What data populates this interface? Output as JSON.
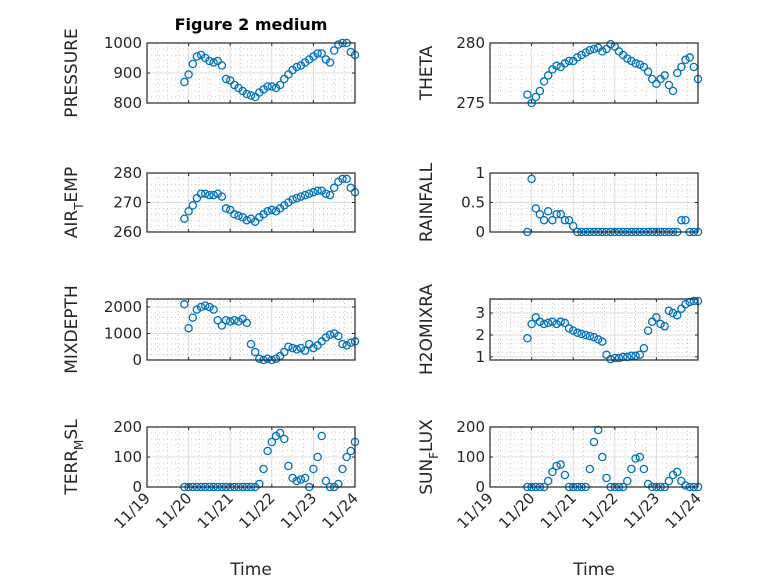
{
  "figure_title": "Figure 2 medium",
  "chart_data": {
    "type": "scatter",
    "title": "Figure 2 medium",
    "xlabel": "Time",
    "xticklabels": [
      "11/19",
      "11/20",
      "11/21",
      "11/22",
      "11/23",
      "11/24"
    ],
    "x_unit": "days since 11/19 00:00",
    "xlim": [
      0,
      5
    ],
    "x": [
      0.9,
      1.0,
      1.1,
      1.2,
      1.3,
      1.4,
      1.5,
      1.6,
      1.7,
      1.8,
      1.9,
      2.0,
      2.1,
      2.2,
      2.3,
      2.4,
      2.5,
      2.6,
      2.7,
      2.8,
      2.9,
      3.0,
      3.1,
      3.2,
      3.3,
      3.4,
      3.5,
      3.6,
      3.7,
      3.8,
      3.9,
      4.0,
      4.1,
      4.2,
      4.3,
      4.4,
      4.5,
      4.6,
      4.7,
      4.8,
      4.9,
      5.0
    ],
    "marker_color": "#0072BD",
    "grid": true,
    "subplots": [
      {
        "ylabel": "PRESSURE",
        "ylim": [
          800,
          1000
        ],
        "yticks": [
          800,
          900,
          1000
        ],
        "yticklabels": [
          "800",
          "900",
          "1000"
        ],
        "values": [
          870,
          895,
          930,
          955,
          960,
          950,
          940,
          935,
          940,
          925,
          880,
          875,
          860,
          850,
          840,
          830,
          825,
          820,
          835,
          845,
          855,
          855,
          850,
          860,
          880,
          895,
          910,
          920,
          925,
          935,
          945,
          955,
          965,
          965,
          945,
          935,
          975,
          995,
          1000,
          1000,
          970,
          960
        ]
      },
      {
        "ylabel": "THETA",
        "ylim": [
          275,
          280
        ],
        "yticks": [
          275,
          280
        ],
        "yticklabels": [
          "275",
          "280"
        ],
        "values": [
          275.7,
          275.0,
          275.5,
          276.0,
          276.8,
          277.3,
          277.8,
          278.1,
          278.0,
          278.3,
          278.5,
          278.5,
          278.8,
          279.0,
          279.2,
          279.4,
          279.5,
          279.6,
          279.3,
          279.5,
          279.9,
          279.7,
          279.3,
          279.0,
          278.7,
          278.5,
          278.3,
          278.2,
          278.0,
          277.6,
          277.0,
          276.6,
          277.0,
          277.3,
          276.5,
          276.0,
          277.5,
          278.0,
          278.6,
          278.8,
          278.0,
          277.0
        ]
      },
      {
        "ylabel": "AIR_TEMP",
        "ylim": [
          260,
          280
        ],
        "yticks": [
          260,
          270,
          280
        ],
        "yticklabels": [
          "260",
          "270",
          "280"
        ],
        "values": [
          264.5,
          267,
          269,
          271.5,
          273,
          273,
          272.5,
          272.5,
          273,
          272,
          268,
          267.5,
          266,
          265.5,
          265,
          264,
          264.5,
          263.5,
          265,
          266,
          267,
          267.5,
          267,
          268,
          269,
          270,
          271,
          271.5,
          272,
          272.5,
          273,
          273.5,
          274,
          274,
          273,
          272.5,
          275,
          277,
          278,
          278,
          275,
          273.5
        ]
      },
      {
        "ylabel": "RAINFALL",
        "ylim": [
          0,
          1
        ],
        "yticks": [
          0,
          0.5,
          1
        ],
        "yticklabels": [
          "0",
          "0.5",
          "1"
        ],
        "values": [
          0,
          0.9,
          0.4,
          0.3,
          0.2,
          0.35,
          0.2,
          0.3,
          0.3,
          0.2,
          0.2,
          0.1,
          0,
          0,
          0,
          0,
          0,
          0,
          0,
          0,
          0,
          0,
          0,
          0,
          0,
          0,
          0,
          0,
          0,
          0,
          0,
          0,
          0,
          0,
          0,
          0,
          0,
          0.2,
          0.2,
          0,
          0,
          0
        ]
      },
      {
        "ylabel": "MIXDEPTH",
        "ylim": [
          0,
          2300
        ],
        "yticks": [
          0,
          1000,
          2000
        ],
        "yticklabels": [
          "0",
          "1000",
          "2000"
        ],
        "values": [
          2100,
          1200,
          1600,
          1900,
          2000,
          2050,
          2000,
          1900,
          1500,
          1300,
          1500,
          1450,
          1500,
          1450,
          1550,
          1400,
          600,
          300,
          50,
          0,
          50,
          0,
          50,
          150,
          300,
          500,
          450,
          400,
          450,
          350,
          600,
          450,
          550,
          700,
          850,
          950,
          1000,
          900,
          600,
          550,
          650,
          700
        ]
      },
      {
        "ylabel": "H2OMIXRA",
        "ylim": [
          0.86,
          3.64
        ],
        "yticks": [
          1,
          2,
          3
        ],
        "yticklabels": [
          "1",
          "2",
          "3"
        ],
        "values": [
          1.85,
          2.5,
          2.8,
          2.6,
          2.5,
          2.55,
          2.6,
          2.5,
          2.6,
          2.55,
          2.3,
          2.2,
          2.1,
          2.05,
          2.0,
          1.95,
          1.9,
          1.8,
          1.7,
          1.1,
          0.9,
          0.95,
          0.95,
          1.0,
          1.0,
          1.05,
          1.05,
          1.1,
          1.4,
          2.2,
          2.6,
          2.8,
          2.5,
          2.4,
          3.1,
          3.0,
          2.9,
          3.2,
          3.4,
          3.5,
          3.55,
          3.55
        ]
      },
      {
        "ylabel": "TERR_MSL",
        "ylim": [
          0,
          200
        ],
        "yticks": [
          0,
          100,
          200
        ],
        "yticklabels": [
          "0",
          "100",
          "200"
        ],
        "values": [
          0,
          0,
          0,
          0,
          0,
          0,
          0,
          0,
          0,
          0,
          0,
          0,
          0,
          0,
          0,
          0,
          0,
          0,
          10,
          60,
          120,
          150,
          170,
          180,
          160,
          70,
          30,
          20,
          25,
          30,
          0,
          60,
          100,
          170,
          20,
          0,
          0,
          10,
          60,
          100,
          120,
          150
        ]
      },
      {
        "ylabel": "SUN_FLUX",
        "ylim": [
          0,
          200
        ],
        "yticks": [
          0,
          100,
          200
        ],
        "yticklabels": [
          "0",
          "100",
          "200"
        ],
        "values": [
          0,
          0,
          0,
          0,
          0,
          20,
          50,
          70,
          75,
          40,
          0,
          0,
          0,
          0,
          0,
          60,
          150,
          190,
          100,
          30,
          0,
          0,
          0,
          0,
          20,
          60,
          95,
          100,
          60,
          10,
          0,
          0,
          0,
          0,
          20,
          40,
          50,
          20,
          5,
          0,
          0,
          0
        ]
      }
    ]
  }
}
